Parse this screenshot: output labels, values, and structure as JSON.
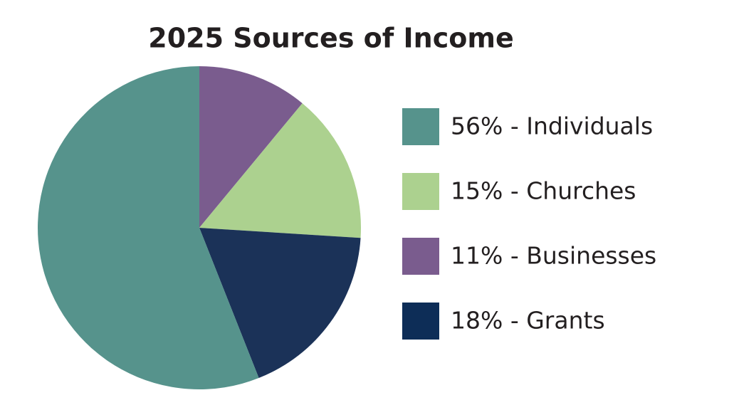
{
  "chart_data": {
    "type": "pie",
    "title": "2025 Sources of Income",
    "values": [
      11,
      15,
      18,
      56
    ],
    "colors": [
      "#7a5c8e",
      "#acd18f",
      "#1b3258",
      "#56938c"
    ],
    "legend": {
      "position": "right",
      "entries": [
        {
          "label": "56% - Individuals",
          "color": "#56938c"
        },
        {
          "label": "15% - Churches",
          "color": "#acd18f"
        },
        {
          "label": "11% - Businesses",
          "color": "#7a5c8e"
        },
        {
          "label": "18% - Grants",
          "color": "#0d2d57"
        }
      ]
    }
  }
}
